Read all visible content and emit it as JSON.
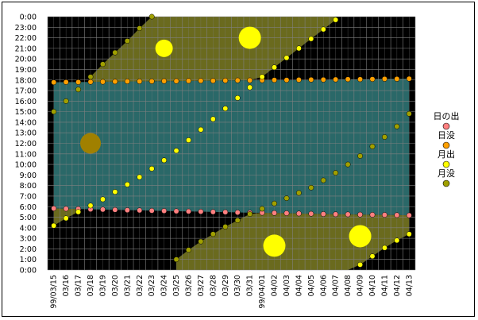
{
  "chart_data": {
    "type": "line",
    "title": "",
    "xlabel": "",
    "ylabel": "",
    "ylim": [
      0,
      24
    ],
    "y_ticks": [
      "0:00",
      "1:00",
      "2:00",
      "3:00",
      "4:00",
      "5:00",
      "6:00",
      "7:00",
      "8:00",
      "9:00",
      "10:00",
      "11:00",
      "12:00",
      "13:00",
      "14:00",
      "15:00",
      "16:00",
      "17:00",
      "18:00",
      "19:00",
      "20:00",
      "21:00",
      "22:00",
      "23:00",
      "0:00"
    ],
    "categories": [
      "99/03/15",
      "03/16",
      "03/17",
      "03/18",
      "03/19",
      "03/20",
      "03/21",
      "03/22",
      "03/23",
      "03/24",
      "03/25",
      "03/26",
      "03/27",
      "03/28",
      "03/29",
      "03/30",
      "03/31",
      "99/04/01",
      "04/02",
      "04/03",
      "04/04",
      "04/05",
      "04/06",
      "04/07",
      "04/08",
      "04/09",
      "04/10",
      "04/11",
      "04/12",
      "04/13"
    ],
    "grid": true,
    "legend_position": "right",
    "series": [
      {
        "name": "日の出",
        "color": "#ff8080",
        "values": [
          5.83,
          5.8,
          5.78,
          5.75,
          5.73,
          5.7,
          5.67,
          5.65,
          5.62,
          5.6,
          5.57,
          5.55,
          5.53,
          5.5,
          5.48,
          5.45,
          5.43,
          5.42,
          5.4,
          5.38,
          5.35,
          5.33,
          5.3,
          5.28,
          5.27,
          5.25,
          5.23,
          5.22,
          5.2,
          5.18
        ]
      },
      {
        "name": "日没",
        "color": "#ffa000",
        "values": [
          17.78,
          17.8,
          17.8,
          17.82,
          17.83,
          17.85,
          17.87,
          17.87,
          17.88,
          17.9,
          17.9,
          17.92,
          17.93,
          17.93,
          17.95,
          17.97,
          17.97,
          17.98,
          18.0,
          18.0,
          18.02,
          18.03,
          18.03,
          18.05,
          18.07,
          18.07,
          18.08,
          18.1,
          18.1,
          18.12
        ]
      },
      {
        "name": "月出",
        "color": "#ffff00",
        "values": [
          4.2,
          4.9,
          5.5,
          6.1,
          6.7,
          7.4,
          8.1,
          8.8,
          9.6,
          10.4,
          11.3,
          12.3,
          13.3,
          14.3,
          15.3,
          16.3,
          17.3,
          18.3,
          19.2,
          20.1,
          21.0,
          21.9,
          22.8,
          23.7,
          null,
          0.5,
          1.3,
          2.1,
          2.8,
          3.4
        ]
      },
      {
        "name": "月没",
        "color": "#a0a000",
        "values": [
          15.0,
          16.0,
          17.1,
          18.3,
          19.5,
          20.6,
          21.7,
          22.9,
          24.0,
          null,
          1.0,
          1.9,
          2.7,
          3.4,
          4.1,
          4.7,
          5.3,
          5.8,
          6.3,
          6.8,
          7.3,
          7.8,
          8.5,
          9.2,
          10.0,
          10.8,
          11.7,
          12.6,
          13.6,
          14.8
        ]
      }
    ],
    "moon_phases": [
      {
        "date": "03/18",
        "time": 12.0,
        "phase": "new moon",
        "color": "#a08000"
      },
      {
        "date": "03/24",
        "time": 21.0,
        "phase": "first quarter",
        "color": "#ffff00"
      },
      {
        "date": "03/31",
        "time": 22.0,
        "phase": "full moon",
        "color": "#ffff00"
      },
      {
        "date": "04/02",
        "time": 2.3,
        "phase": "full moon",
        "color": "#ffff00"
      },
      {
        "date": "04/09",
        "time": 3.2,
        "phase": "last quarter",
        "color": "#ffff00"
      }
    ]
  },
  "colors": {
    "background": "#000000",
    "grid": "#808080",
    "day_band": "#2a6868",
    "moon_up": "#707020"
  }
}
